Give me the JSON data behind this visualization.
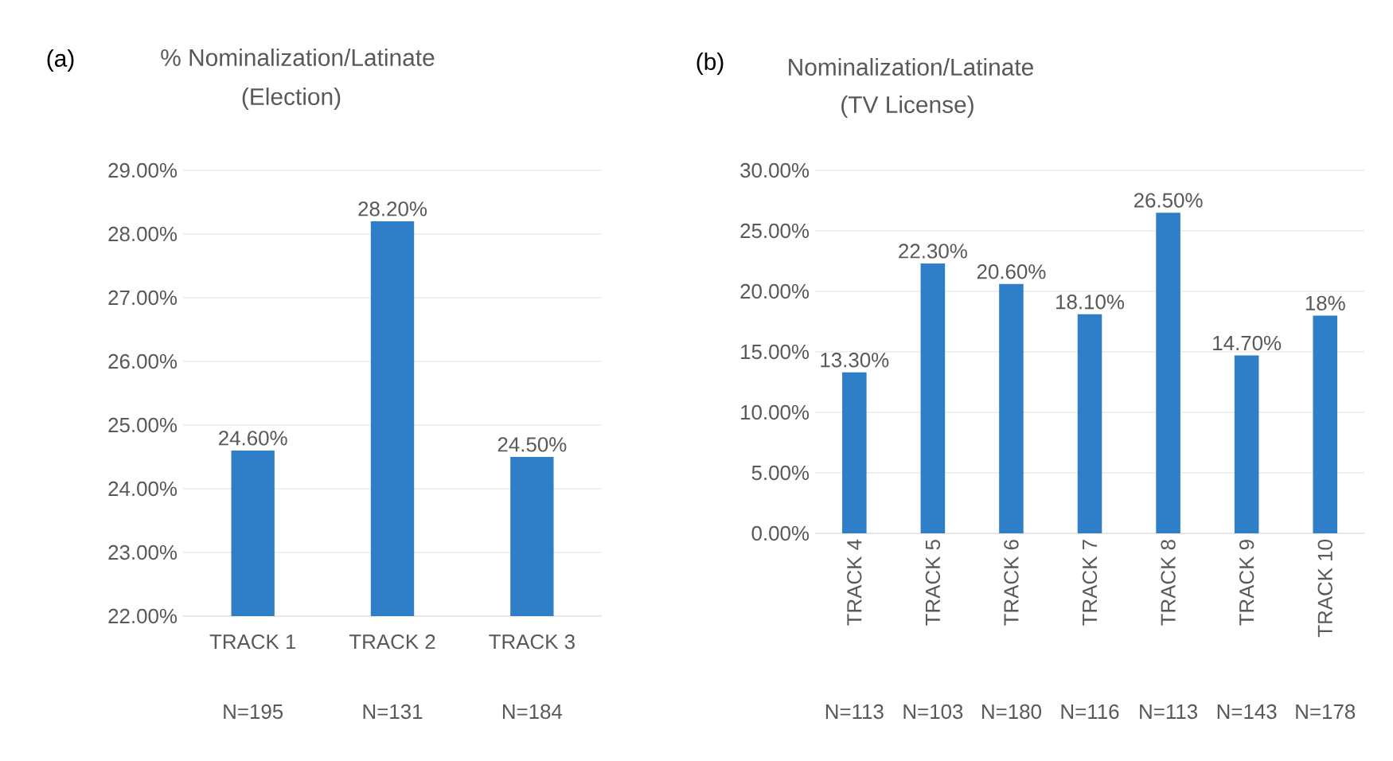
{
  "chart_data": [
    {
      "type": "bar",
      "title": "% Nominalization/Latinate",
      "subtitle": "(Election)",
      "categories": [
        "TRACK 1",
        "TRACK 2",
        "TRACK 3"
      ],
      "values": [
        24.6,
        28.2,
        24.5
      ],
      "color": "#2e7fc7",
      "value_labels": [
        "24.60%",
        "28.20%",
        "24.50%"
      ],
      "ylim": [
        22,
        29
      ],
      "yticks": [
        {
          "value": 22,
          "label": "22.00%"
        },
        {
          "value": 23,
          "label": "23.00%"
        },
        {
          "value": 24,
          "label": "24.00%"
        },
        {
          "value": 25,
          "label": "25.00%"
        },
        {
          "value": 26,
          "label": "26.00%"
        },
        {
          "value": 27,
          "label": "27.00%"
        },
        {
          "value": 28,
          "label": "28.00%"
        },
        {
          "value": 29,
          "label": "29.00%"
        }
      ],
      "grid": "y",
      "annotations": [
        "(a)",
        "N=195",
        "N=131",
        "N=184"
      ]
    },
    {
      "type": "bar",
      "title": "Nominalization/Latinate",
      "subtitle": "(TV License)",
      "categories": [
        "TRACK 4",
        "TRACK 5",
        "TRACK 6",
        "TRACK 7",
        "TRACK 8",
        "TRACK 9",
        "TRACK 10"
      ],
      "values": [
        13.3,
        22.3,
        20.6,
        18.1,
        26.5,
        14.7,
        18
      ],
      "color": "#2e7fc7",
      "value_labels": [
        "13.30%",
        "22.30%",
        "20.60%",
        "18.10%",
        "26.50%",
        "14.70%",
        "18%"
      ],
      "ylim": [
        0,
        30
      ],
      "yticks": [
        {
          "value": 0,
          "label": "0.00%"
        },
        {
          "value": 5,
          "label": "5.00%"
        },
        {
          "value": 10,
          "label": "10.00%"
        },
        {
          "value": 15,
          "label": "15.00%"
        },
        {
          "value": 20,
          "label": "20.00%"
        },
        {
          "value": 25,
          "label": "25.00%"
        },
        {
          "value": 30,
          "label": "30.00%"
        }
      ],
      "grid": "y",
      "annotations": [
        "(b)",
        "N=113",
        "N=103",
        "N=180",
        "N=116",
        "N=113",
        "N=143",
        "N=178"
      ]
    }
  ]
}
